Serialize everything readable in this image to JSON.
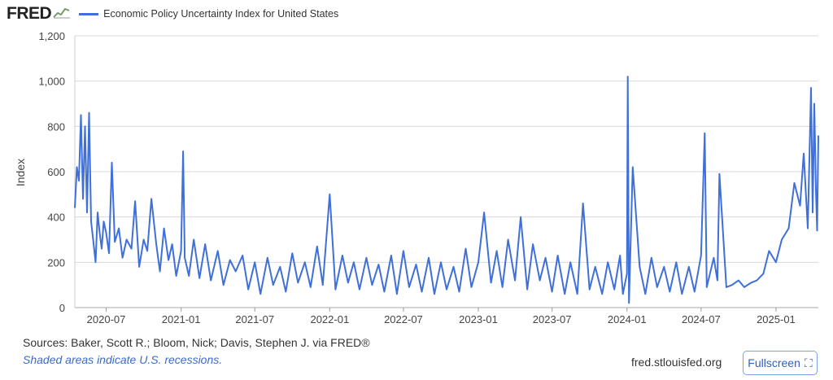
{
  "header": {
    "logo_text": "FRED",
    "logo_icon": "graph-line-icon",
    "legend_label": "Economic Policy Uncertainty Index for United States",
    "series_color": "#3f6fd8"
  },
  "footer": {
    "sources": "Sources: Baker, Scott R.; Bloom, Nick; Davis, Stephen J. via FRED®",
    "recession_note": "Shaded areas indicate U.S. recessions.",
    "url": "fred.stlouisfed.org",
    "fullscreen_label": "Fullscreen",
    "fullscreen_icon": "expand-icon"
  },
  "chart_data": {
    "type": "line",
    "ylabel": "Index",
    "ylim": [
      0,
      1200
    ],
    "yticks": [
      0,
      200,
      400,
      600,
      800,
      1000,
      1200
    ],
    "ytick_labels": [
      "0",
      "200",
      "400",
      "600",
      "800",
      "1,000",
      "1,200"
    ],
    "xlim": [
      "2020-04-15",
      "2025-04-15"
    ],
    "xticks": [
      "2020-07-01",
      "2021-01-01",
      "2021-07-01",
      "2022-01-01",
      "2022-07-01",
      "2023-01-01",
      "2023-07-01",
      "2024-01-01",
      "2024-07-01",
      "2025-01-01"
    ],
    "xtick_labels": [
      "2020-07",
      "2021-01",
      "2021-07",
      "2022-01",
      "2022-07",
      "2023-01",
      "2023-07",
      "2024-01",
      "2024-07",
      "2025-01"
    ],
    "grid": true,
    "legend_position": "top",
    "series": [
      {
        "name": "Economic Policy Uncertainty Index for United States",
        "color": "#3f6fd8",
        "x": [
          "2020-04-15",
          "2020-04-20",
          "2020-04-25",
          "2020-04-30",
          "2020-05-05",
          "2020-05-10",
          "2020-05-15",
          "2020-05-20",
          "2020-05-25",
          "2020-05-30",
          "2020-06-05",
          "2020-06-10",
          "2020-06-15",
          "2020-06-20",
          "2020-06-25",
          "2020-07-01",
          "2020-07-08",
          "2020-07-15",
          "2020-07-22",
          "2020-08-01",
          "2020-08-10",
          "2020-08-20",
          "2020-09-01",
          "2020-09-10",
          "2020-09-20",
          "2020-10-01",
          "2020-10-10",
          "2020-10-20",
          "2020-11-01",
          "2020-11-10",
          "2020-11-20",
          "2020-12-01",
          "2020-12-10",
          "2020-12-20",
          "2021-01-01",
          "2021-01-06",
          "2021-01-10",
          "2021-01-20",
          "2021-02-01",
          "2021-02-15",
          "2021-03-01",
          "2021-03-15",
          "2021-04-01",
          "2021-04-15",
          "2021-05-01",
          "2021-05-15",
          "2021-06-01",
          "2021-06-15",
          "2021-07-01",
          "2021-07-15",
          "2021-08-01",
          "2021-08-15",
          "2021-09-01",
          "2021-09-15",
          "2021-10-01",
          "2021-10-15",
          "2021-11-01",
          "2021-11-15",
          "2021-12-01",
          "2021-12-15",
          "2022-01-01",
          "2022-01-15",
          "2022-02-01",
          "2022-02-15",
          "2022-03-01",
          "2022-03-15",
          "2022-04-01",
          "2022-04-15",
          "2022-05-01",
          "2022-05-15",
          "2022-06-01",
          "2022-06-15",
          "2022-07-01",
          "2022-07-15",
          "2022-08-01",
          "2022-08-15",
          "2022-09-01",
          "2022-09-15",
          "2022-10-01",
          "2022-10-15",
          "2022-11-01",
          "2022-11-15",
          "2022-12-01",
          "2022-12-15",
          "2023-01-01",
          "2023-01-15",
          "2023-02-01",
          "2023-02-15",
          "2023-03-01",
          "2023-03-15",
          "2023-04-01",
          "2023-04-15",
          "2023-05-01",
          "2023-05-15",
          "2023-06-01",
          "2023-06-15",
          "2023-07-01",
          "2023-07-15",
          "2023-08-01",
          "2023-08-15",
          "2023-09-01",
          "2023-09-15",
          "2023-10-01",
          "2023-10-15",
          "2023-11-01",
          "2023-11-15",
          "2023-12-01",
          "2023-12-15",
          "2023-12-22",
          "2024-01-01",
          "2024-01-03",
          "2024-01-06",
          "2024-01-15",
          "2024-02-01",
          "2024-02-15",
          "2024-03-01",
          "2024-03-15",
          "2024-04-01",
          "2024-04-15",
          "2024-05-01",
          "2024-05-15",
          "2024-06-01",
          "2024-06-15",
          "2024-07-01",
          "2024-07-10",
          "2024-07-15",
          "2024-08-01",
          "2024-08-10",
          "2024-08-15",
          "2024-09-01",
          "2024-09-15",
          "2024-10-01",
          "2024-10-15",
          "2024-11-01",
          "2024-11-15",
          "2024-12-01",
          "2024-12-15",
          "2025-01-01",
          "2025-01-15",
          "2025-02-01",
          "2025-02-15",
          "2025-03-01",
          "2025-03-10",
          "2025-03-20",
          "2025-03-28",
          "2025-04-01",
          "2025-04-05",
          "2025-04-09",
          "2025-04-12",
          "2025-04-15"
        ],
        "y": [
          440,
          620,
          560,
          850,
          480,
          800,
          420,
          860,
          380,
          300,
          200,
          420,
          330,
          260,
          380,
          330,
          240,
          640,
          290,
          350,
          220,
          300,
          260,
          470,
          180,
          300,
          250,
          480,
          280,
          160,
          350,
          210,
          280,
          140,
          250,
          690,
          220,
          140,
          300,
          130,
          280,
          120,
          250,
          100,
          210,
          160,
          230,
          80,
          200,
          60,
          220,
          100,
          180,
          70,
          240,
          110,
          200,
          90,
          270,
          100,
          500,
          80,
          230,
          110,
          200,
          80,
          220,
          100,
          190,
          70,
          230,
          60,
          250,
          90,
          190,
          70,
          220,
          60,
          200,
          80,
          180,
          70,
          260,
          90,
          200,
          420,
          110,
          250,
          90,
          300,
          120,
          400,
          80,
          280,
          120,
          220,
          70,
          230,
          60,
          200,
          60,
          460,
          80,
          180,
          60,
          200,
          80,
          230,
          60,
          150,
          1020,
          20,
          620,
          180,
          60,
          220,
          90,
          180,
          70,
          200,
          60,
          180,
          70,
          230,
          770,
          90,
          220,
          120,
          590,
          90,
          100,
          120,
          90,
          110,
          120,
          150,
          250,
          200,
          300,
          350,
          550,
          450,
          680,
          350,
          970,
          420,
          900,
          520,
          340,
          760
        ]
      }
    ]
  }
}
